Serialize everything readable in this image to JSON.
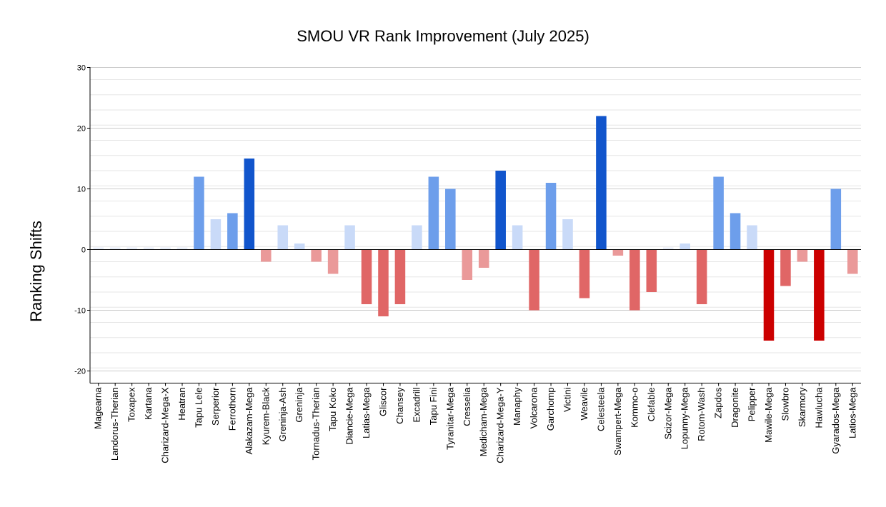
{
  "chart_data": {
    "type": "bar",
    "title": "SMOU VR Rank Improvement (July 2025)",
    "ylabel": "Ranking Shifts",
    "xlabel": "",
    "ylim": [
      -22,
      30
    ],
    "yticks": [
      -20,
      -10,
      0,
      10,
      20,
      30
    ],
    "grid": true,
    "categories": [
      "Magearna",
      "Landorus-Therian",
      "Toxapex",
      "Kartana",
      "Charizard-Mega-X",
      "Heatran",
      "Tapu Lele",
      "Serperior",
      "Ferrothorn",
      "Alakazam-Mega",
      "Kyurem-Black",
      "Greninja-Ash",
      "Greninja",
      "Tornadus-Therian",
      "Tapu Koko",
      "Diancie-Mega",
      "Latias-Mega",
      "Gliscor",
      "Chansey",
      "Excadrill",
      "Tapu Fini",
      "Tyranitar-Mega",
      "Cresselia",
      "Medicham-Mega",
      "Charizard-Mega-Y",
      "Manaphy",
      "Volcarona",
      "Garchomp",
      "Victini",
      "Weavile",
      "Celesteela",
      "Swampert-Mega",
      "Kommo-o",
      "Clefable",
      "Scizor-Mega",
      "Lopunny-Mega",
      "Rotom-Wash",
      "Zapdos",
      "Dragonite",
      "Pelipper",
      "Mawile-Mega",
      "Slowbro",
      "Skarmory",
      "Hawlucha",
      "Gyarados-Mega",
      "Latios-Mega"
    ],
    "values": [
      0,
      0,
      0,
      0,
      0,
      0,
      12,
      5,
      6,
      15,
      -2,
      4,
      1,
      -2,
      -4,
      4,
      -9,
      -11,
      -9,
      4,
      12,
      10,
      -5,
      -3,
      13,
      4,
      -10,
      11,
      5,
      -8,
      22,
      -1,
      -10,
      -7,
      0,
      1,
      -9,
      12,
      6,
      4,
      -15,
      -6,
      -2,
      -15,
      10,
      -4
    ],
    "colors": {
      "pos_strong": "#1155cc",
      "pos_mid": "#6d9eeb",
      "pos_light": "#c9daf8",
      "neg_strong": "#cc0000",
      "neg_mid": "#e06666",
      "neg_light": "#ea9999",
      "zero": "#e8eef8",
      "grid": "#cccccc",
      "minor_grid": "#e6e6e6",
      "axis": "#000000"
    }
  }
}
